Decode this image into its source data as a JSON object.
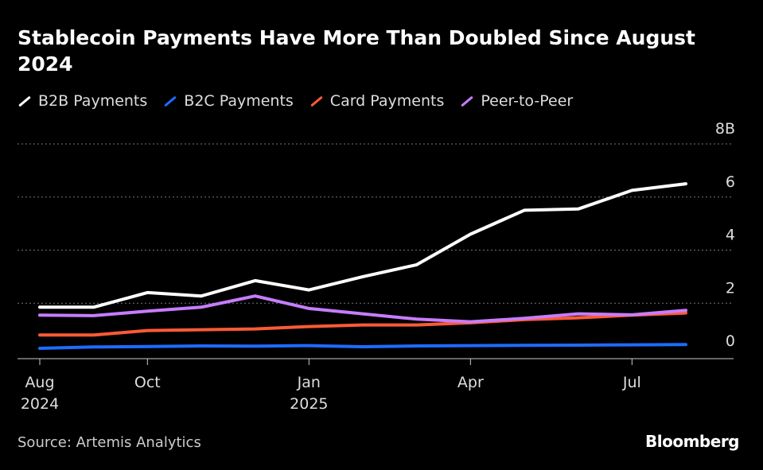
{
  "header": {
    "title": "Stablecoin Payments Have More Than Doubled Since August 2024"
  },
  "footer": {
    "source": "Source: Artemis Analytics",
    "brand": "Bloomberg"
  },
  "chart_data": {
    "type": "line",
    "title": "Stablecoin Payments Have More Than Doubled Since August 2024",
    "x": [
      "2024-08",
      "2024-09",
      "2024-10",
      "2024-11",
      "2024-12",
      "2025-01",
      "2025-02",
      "2025-03",
      "2025-04",
      "2025-05",
      "2025-06",
      "2025-07",
      "2025-08"
    ],
    "x_tick_labels": [
      {
        "month": "2024-08",
        "label": "Aug",
        "sub": "2024"
      },
      {
        "month": "2024-10",
        "label": "Oct",
        "sub": ""
      },
      {
        "month": "2025-01",
        "label": "Jan",
        "sub": "2025"
      },
      {
        "month": "2025-04",
        "label": "Apr",
        "sub": ""
      },
      {
        "month": "2025-07",
        "label": "Jul",
        "sub": ""
      }
    ],
    "y_ticks": [
      {
        "value": 0,
        "label": "0"
      },
      {
        "value": 2,
        "label": "2"
      },
      {
        "value": 4,
        "label": "4"
      },
      {
        "value": 6,
        "label": "6"
      },
      {
        "value": 8,
        "label": "8B"
      }
    ],
    "ylim": [
      0,
      8
    ],
    "xlabel": "",
    "ylabel": "",
    "grid": true,
    "legend_position": "top-left",
    "series": [
      {
        "name": "B2B Payments",
        "color": "#ffffff",
        "values": [
          1.85,
          1.85,
          2.4,
          2.27,
          2.85,
          2.5,
          3.0,
          3.45,
          4.6,
          5.5,
          5.55,
          6.25,
          6.5
        ]
      },
      {
        "name": "B2C Payments",
        "color": "#1f6bff",
        "values": [
          0.3,
          0.35,
          0.37,
          0.39,
          0.38,
          0.4,
          0.36,
          0.39,
          0.4,
          0.41,
          0.42,
          0.43,
          0.44
        ]
      },
      {
        "name": "Card Payments",
        "color": "#ff5a36",
        "values": [
          0.8,
          0.8,
          0.97,
          1.0,
          1.03,
          1.12,
          1.18,
          1.18,
          1.26,
          1.38,
          1.45,
          1.55,
          1.63
        ]
      },
      {
        "name": "Peer-to-Peer",
        "color": "#c77dff",
        "values": [
          1.55,
          1.53,
          1.7,
          1.85,
          2.27,
          1.8,
          1.6,
          1.4,
          1.3,
          1.43,
          1.6,
          1.56,
          1.73
        ]
      }
    ]
  }
}
